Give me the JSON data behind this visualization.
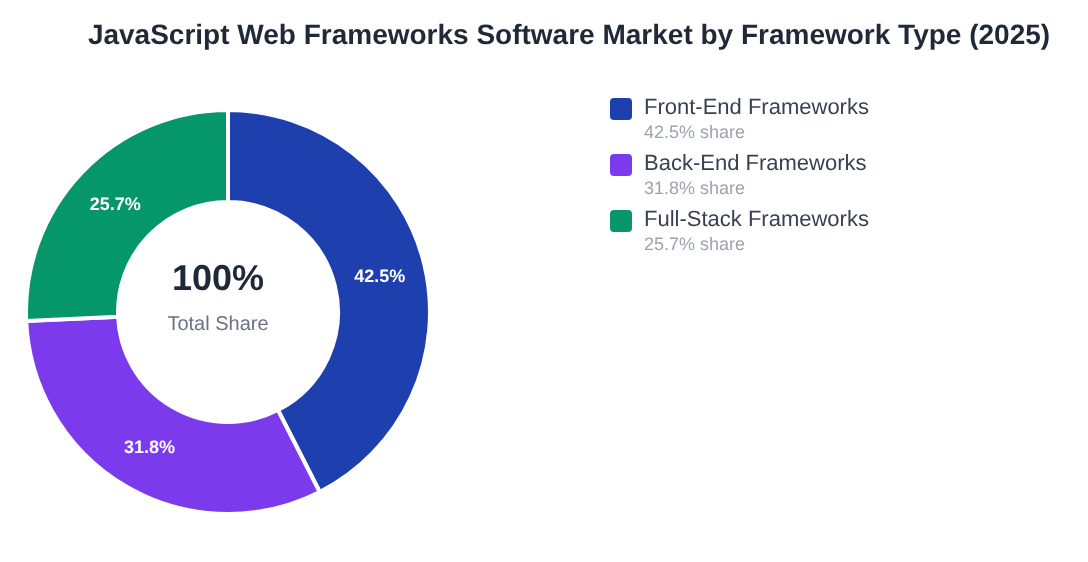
{
  "chart_data": {
    "type": "donut",
    "title": "JavaScript Web Frameworks Software Market by Framework Type (2025)",
    "categories": [
      "Front-End Frameworks",
      "Back-End Frameworks",
      "Full-Stack Frameworks"
    ],
    "values": [
      42.5,
      31.8,
      25.7
    ],
    "colors": [
      "#1e40af",
      "#7c3aed",
      "#059669"
    ],
    "value_labels": [
      "42.5%",
      "31.8%",
      "25.7%"
    ],
    "annotations": [
      "100%",
      "Total Share",
      "42.5% share",
      "31.8% share",
      "25.7% share"
    ],
    "legend": "top right"
  }
}
